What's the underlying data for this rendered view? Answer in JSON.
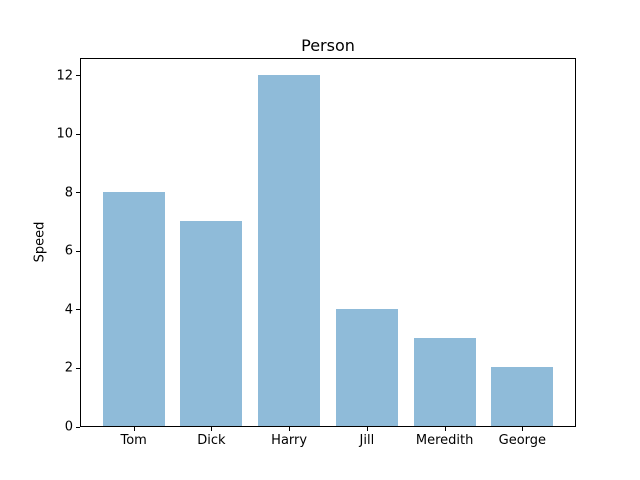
{
  "chart_data": {
    "type": "bar",
    "title": "Person",
    "xlabel": "",
    "ylabel": "Speed",
    "categories": [
      "Tom",
      "Dick",
      "Harry",
      "Jill",
      "Meredith",
      "George"
    ],
    "values": [
      8,
      7,
      12,
      4,
      3,
      2
    ],
    "yticks": [
      0,
      2,
      4,
      6,
      8,
      10,
      12
    ],
    "ylim": [
      0,
      12.6
    ],
    "bar_width_fraction": 0.8,
    "grid": false,
    "legend": "none",
    "colors": {
      "bar": "#8fbbd9",
      "axis": "#000000",
      "text": "#000000",
      "background": "#ffffff"
    }
  }
}
